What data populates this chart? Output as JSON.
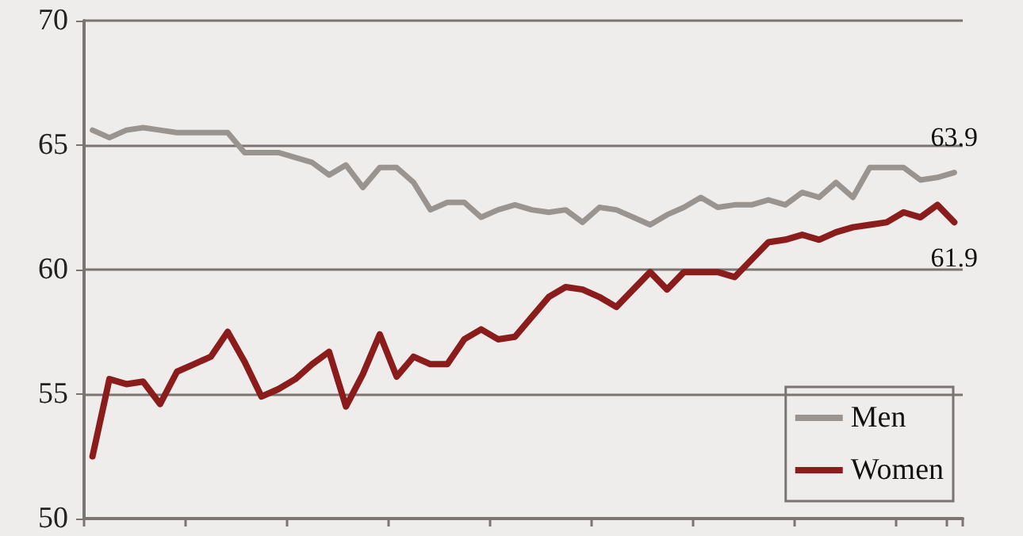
{
  "chart_data": {
    "type": "line",
    "categories": [
      null,
      null,
      null,
      null,
      null,
      null,
      null,
      null,
      null,
      null,
      null,
      null,
      null,
      null,
      null,
      null,
      null,
      null,
      null,
      null,
      null,
      null,
      null,
      null,
      null,
      null,
      null,
      null,
      null,
      null,
      null,
      null,
      null,
      null,
      null,
      null,
      null,
      null,
      null,
      null,
      null,
      null,
      null,
      null,
      null,
      null,
      null,
      null,
      null,
      null,
      null,
      null
    ],
    "series": [
      {
        "name": "Men",
        "color": "#9a9490",
        "values": [
          65.6,
          65.3,
          65.6,
          65.7,
          65.6,
          65.5,
          65.5,
          65.5,
          65.5,
          64.7,
          64.7,
          64.7,
          64.5,
          64.3,
          63.8,
          64.2,
          63.3,
          64.1,
          64.1,
          63.5,
          62.4,
          62.7,
          62.7,
          62.1,
          62.4,
          62.6,
          62.4,
          62.3,
          62.4,
          61.9,
          62.5,
          62.4,
          62.1,
          61.8,
          62.2,
          62.5,
          62.9,
          62.5,
          62.6,
          62.6,
          62.8,
          62.6,
          63.1,
          62.9,
          63.5,
          62.9,
          64.1,
          64.1,
          64.1,
          63.6,
          63.7,
          63.9
        ],
        "value_labels": [
          null,
          null,
          null,
          null,
          null,
          null,
          null,
          null,
          null,
          null,
          null,
          null,
          null,
          null,
          null,
          null,
          null,
          null,
          null,
          null,
          null,
          null,
          null,
          null,
          null,
          null,
          null,
          null,
          null,
          null,
          null,
          null,
          null,
          null,
          null,
          null,
          null,
          null,
          null,
          null,
          null,
          null,
          null,
          null,
          null,
          null,
          null,
          null,
          null,
          null,
          null,
          "63.9"
        ]
      },
      {
        "name": "Women",
        "color": "#8b1c1c",
        "values": [
          52.5,
          55.6,
          55.4,
          55.5,
          54.6,
          55.9,
          56.2,
          56.5,
          57.5,
          56.3,
          54.9,
          55.2,
          55.6,
          56.2,
          56.7,
          54.5,
          55.8,
          57.4,
          55.7,
          56.5,
          56.2,
          56.2,
          57.2,
          57.6,
          57.2,
          57.3,
          58.1,
          58.9,
          59.3,
          59.2,
          58.9,
          58.5,
          59.2,
          59.9,
          59.2,
          59.9,
          59.9,
          59.9,
          59.7,
          60.4,
          61.1,
          61.2,
          61.4,
          61.2,
          61.5,
          61.7,
          61.8,
          61.9,
          62.3,
          62.1,
          62.6,
          61.9
        ],
        "value_labels": [
          null,
          null,
          null,
          null,
          null,
          null,
          null,
          null,
          null,
          null,
          null,
          null,
          null,
          null,
          null,
          null,
          null,
          null,
          null,
          null,
          null,
          null,
          null,
          null,
          null,
          null,
          null,
          null,
          null,
          null,
          null,
          null,
          null,
          null,
          null,
          null,
          null,
          null,
          null,
          null,
          null,
          null,
          null,
          null,
          null,
          null,
          null,
          null,
          null,
          null,
          null,
          "61.9"
        ]
      }
    ],
    "ylim": [
      50,
      70
    ],
    "yticks": [
      50,
      55,
      60,
      65,
      70
    ],
    "grid": "y",
    "legend": "bottom right",
    "tick_labels": "y",
    "marker": "none",
    "line_style": "solid"
  }
}
